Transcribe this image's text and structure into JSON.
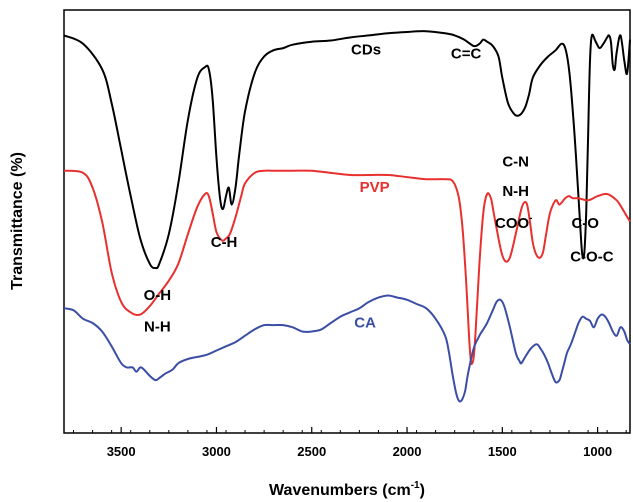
{
  "chart_data": {
    "type": "line",
    "title": "",
    "xlabel": "Wavenumbers (cm",
    "xlabel_sup": "-1",
    "xlabel_close": ")",
    "ylabel": "Transmittance (%)",
    "xlim": [
      3800,
      830
    ],
    "x_reversed": true,
    "ylim": [
      0,
      100
    ],
    "grid": false,
    "y_ticks_shown": false,
    "x_ticks": [
      {
        "value": 3500,
        "label": "3500"
      },
      {
        "value": 3000,
        "label": "3000"
      },
      {
        "value": 2500,
        "label": "2500"
      },
      {
        "value": 2000,
        "label": "2000"
      },
      {
        "value": 1500,
        "label": "1500"
      },
      {
        "value": 1000,
        "label": "1000"
      }
    ],
    "series": [
      {
        "name": "CDs",
        "color": "#000000",
        "x": [
          3800,
          3700,
          3600,
          3550,
          3500,
          3450,
          3400,
          3350,
          3320,
          3300,
          3250,
          3200,
          3150,
          3100,
          3060,
          3040,
          3020,
          3000,
          2980,
          2965,
          2950,
          2935,
          2920,
          2900,
          2880,
          2850,
          2800,
          2750,
          2700,
          2650,
          2600,
          2500,
          2400,
          2300,
          2200,
          2100,
          2000,
          1900,
          1800,
          1750,
          1700,
          1650,
          1620,
          1600,
          1580,
          1550,
          1520,
          1500,
          1470,
          1440,
          1420,
          1400,
          1380,
          1360,
          1340,
          1300,
          1260,
          1220,
          1190,
          1170,
          1150,
          1130,
          1110,
          1090,
          1080,
          1070,
          1060,
          1050,
          1040,
          1030,
          1010,
          990,
          970,
          950,
          940,
          930,
          920,
          910,
          900,
          880,
          860,
          845,
          830
        ],
        "y": [
          94,
          92,
          86,
          78,
          67,
          56,
          46,
          40,
          39,
          40,
          47,
          59,
          74,
          84,
          86.5,
          86,
          79,
          65,
          55,
          53,
          56,
          58,
          54,
          58,
          66,
          76,
          85,
          89,
          90.5,
          91,
          91.8,
          92.5,
          92.8,
          93.5,
          94,
          94.5,
          94.8,
          95,
          94.5,
          94,
          93,
          91.5,
          92,
          93,
          92.5,
          91.5,
          89,
          84,
          78,
          75.5,
          75,
          75.5,
          77,
          80,
          84,
          87,
          89,
          90.5,
          92,
          91,
          86,
          76,
          63,
          48,
          42,
          42.5,
          52,
          70,
          88,
          94,
          92.5,
          91,
          92,
          93.5,
          94,
          92.5,
          87,
          86,
          90,
          94,
          88,
          85,
          93
        ]
      },
      {
        "name": "PVP",
        "color": "#e8302e",
        "x": [
          3800,
          3700,
          3650,
          3600,
          3550,
          3500,
          3450,
          3400,
          3350,
          3300,
          3250,
          3200,
          3150,
          3100,
          3060,
          3040,
          3020,
          3000,
          2970,
          2950,
          2930,
          2900,
          2870,
          2850,
          2800,
          2750,
          2700,
          2600,
          2500,
          2400,
          2300,
          2200,
          2100,
          2000,
          1900,
          1800,
          1760,
          1730,
          1710,
          1690,
          1675,
          1665,
          1658,
          1650,
          1640,
          1620,
          1600,
          1580,
          1560,
          1545,
          1520,
          1500,
          1480,
          1460,
          1440,
          1420,
          1400,
          1385,
          1370,
          1355,
          1340,
          1320,
          1300,
          1285,
          1270,
          1250,
          1220,
          1200,
          1170,
          1150,
          1130,
          1100,
          1050,
          1000,
          950,
          900,
          870,
          850,
          830
        ],
        "y": [
          62,
          61.5,
          58,
          50,
          38,
          31,
          28.5,
          28,
          30,
          33,
          36,
          40,
          47,
          53.5,
          56.5,
          56,
          52,
          47.5,
          45.5,
          46,
          47,
          51,
          56,
          59,
          61.5,
          62,
          62,
          62,
          62,
          61.5,
          61,
          61,
          61,
          60.5,
          60,
          60,
          59.5,
          56,
          49,
          36,
          23,
          17,
          16.5,
          18,
          24,
          40,
          52,
          56.5,
          55.5,
          52,
          46,
          42,
          40.5,
          41.5,
          45,
          49,
          53,
          54.5,
          54,
          50,
          45,
          42,
          41.5,
          43,
          47,
          52,
          55,
          54,
          55.5,
          56,
          55.5,
          55.5,
          55,
          56,
          56.5,
          55,
          53,
          51.5,
          50
        ]
      },
      {
        "name": "CA",
        "color": "#3a4ea5",
        "x": [
          3800,
          3750,
          3700,
          3650,
          3600,
          3550,
          3500,
          3470,
          3440,
          3420,
          3400,
          3380,
          3350,
          3320,
          3300,
          3270,
          3230,
          3200,
          3150,
          3100,
          3050,
          3000,
          2950,
          2900,
          2850,
          2800,
          2750,
          2700,
          2650,
          2600,
          2550,
          2500,
          2450,
          2400,
          2350,
          2300,
          2250,
          2200,
          2150,
          2100,
          2050,
          2000,
          1950,
          1900,
          1850,
          1800,
          1780,
          1760,
          1740,
          1725,
          1710,
          1695,
          1680,
          1650,
          1620,
          1600,
          1580,
          1550,
          1530,
          1510,
          1490,
          1460,
          1430,
          1410,
          1400,
          1380,
          1350,
          1320,
          1300,
          1280,
          1260,
          1240,
          1220,
          1200,
          1190,
          1175,
          1160,
          1140,
          1120,
          1100,
          1080,
          1060,
          1040,
          1020,
          1000,
          980,
          960,
          940,
          920,
          900,
          880,
          860,
          845,
          830
        ],
        "y": [
          29.5,
          29,
          27,
          26,
          24,
          20.5,
          16.5,
          15.5,
          15.5,
          14.5,
          15.5,
          15,
          13.5,
          12.5,
          13,
          14,
          15,
          16.5,
          17.5,
          18,
          18.5,
          19.5,
          20.5,
          21.5,
          23,
          24.5,
          25.5,
          25.5,
          25.5,
          25,
          24,
          24,
          24.5,
          26,
          27.5,
          28.5,
          29.5,
          31,
          32,
          32.5,
          32,
          31.5,
          30.5,
          29.5,
          27,
          23,
          19,
          13.5,
          9,
          7.5,
          8,
          10,
          14,
          20,
          23,
          24.5,
          26,
          29,
          31,
          31.5,
          30,
          25,
          19,
          17,
          16.5,
          18,
          20,
          21,
          20,
          18.5,
          16.5,
          14,
          12,
          12.5,
          14,
          16.5,
          19,
          21,
          23.5,
          26,
          27.5,
          27,
          26.5,
          25,
          27,
          28,
          27.5,
          26,
          24,
          23,
          25,
          24,
          22,
          21
        ]
      }
    ],
    "annotations": [
      {
        "text": "O-H",
        "x": 3310,
        "y": 31.5,
        "color": "#000000"
      },
      {
        "text": "N-H",
        "x": 3310,
        "y": 24,
        "color": "#000000"
      },
      {
        "text": "C-H",
        "x": 2960,
        "y": 44,
        "color": "#000000"
      },
      {
        "text": "CDs",
        "x": 2215,
        "y": 89.5,
        "color": "#000000"
      },
      {
        "text": "C=C",
        "x": 1690,
        "y": 88.5,
        "color": "#000000"
      },
      {
        "text": "C-N",
        "x": 1430,
        "y": 63,
        "color": "#000000"
      },
      {
        "text": "N-H",
        "x": 1430,
        "y": 56,
        "color": "#000000"
      },
      {
        "text": "COO",
        "x": 1440,
        "y": 48.5,
        "color": "#000000",
        "sup": "-"
      },
      {
        "text": "C-O",
        "x": 1065,
        "y": 48.5,
        "color": "#000000"
      },
      {
        "text": "C-O-C",
        "x": 1030,
        "y": 40.5,
        "color": "#000000"
      },
      {
        "text": "PVP",
        "x": 2170,
        "y": 57,
        "color": "#e8302e"
      },
      {
        "text": "CA",
        "x": 2220,
        "y": 25,
        "color": "#3a4ea5"
      }
    ]
  }
}
